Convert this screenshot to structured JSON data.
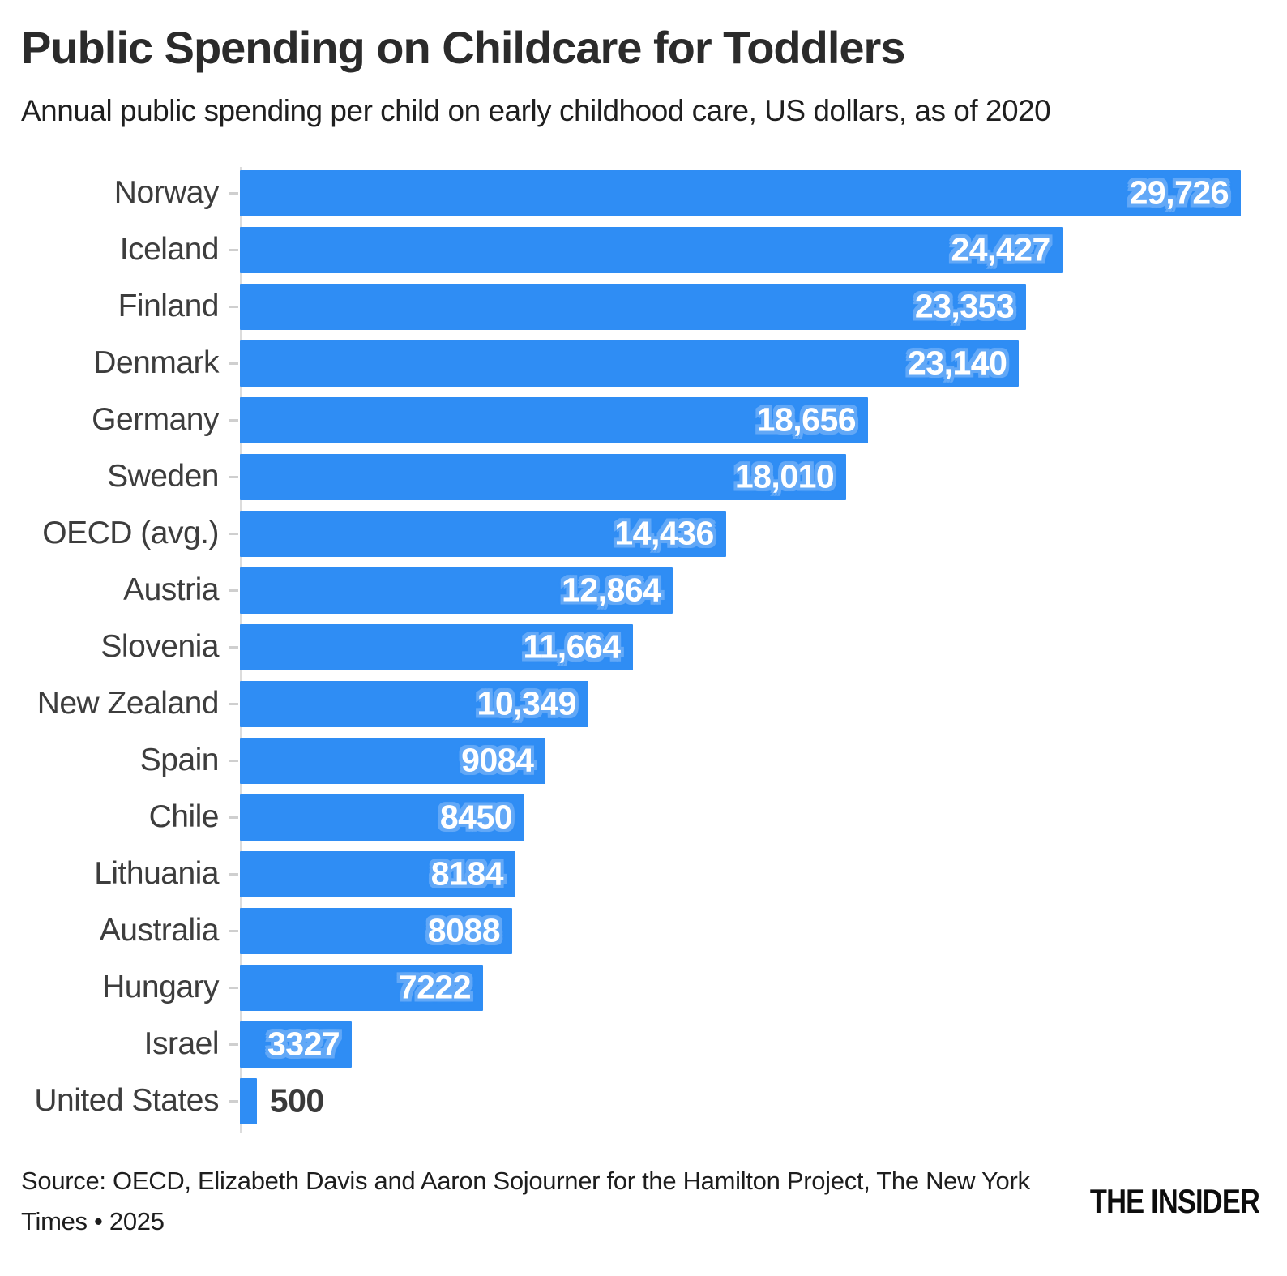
{
  "header": {
    "title": "Public Spending on Childcare for Toddlers",
    "subtitle": "Annual public spending per child on early childhood care, US dollars, as of 2020"
  },
  "footer": {
    "source": "Source: OECD, Elizabeth Davis and Aaron Sojourner for the Hamilton Project, The New York Times • 2025",
    "brand": "THE INSIDER"
  },
  "colors": {
    "bar": "#2f8df4",
    "value_text_inside": "#ffffff",
    "value_halo": "#62a8f7",
    "value_text_outside": "#3a3a3a",
    "category_label": "#3d3d3d",
    "axis": "#dcdcdc",
    "background": "#ffffff"
  },
  "chart_data": {
    "type": "bar",
    "orientation": "horizontal",
    "title": "Public Spending on Childcare for Toddlers",
    "subtitle": "Annual public spending per child on early childhood care, US dollars, as of 2020",
    "xlabel": "",
    "ylabel": "",
    "xlim": [
      0,
      29726
    ],
    "grid": false,
    "legend": false,
    "categories": [
      "Norway",
      "Iceland",
      "Finland",
      "Denmark",
      "Germany",
      "Sweden",
      "OECD (avg.)",
      "Austria",
      "Slovenia",
      "New Zealand",
      "Spain",
      "Chile",
      "Lithuania",
      "Australia",
      "Hungary",
      "Israel",
      "United States"
    ],
    "values": [
      29726,
      24427,
      23353,
      23140,
      18656,
      18010,
      14436,
      12864,
      11664,
      10349,
      9084,
      8450,
      8184,
      8088,
      7222,
      3327,
      500
    ],
    "value_labels": [
      "29,726",
      "24,427",
      "23,353",
      "23,140",
      "18,656",
      "18,010",
      "14,436",
      "12,864",
      "11,664",
      "10,349",
      "9084",
      "8450",
      "8184",
      "8088",
      "7222",
      "3327",
      "500"
    ]
  }
}
